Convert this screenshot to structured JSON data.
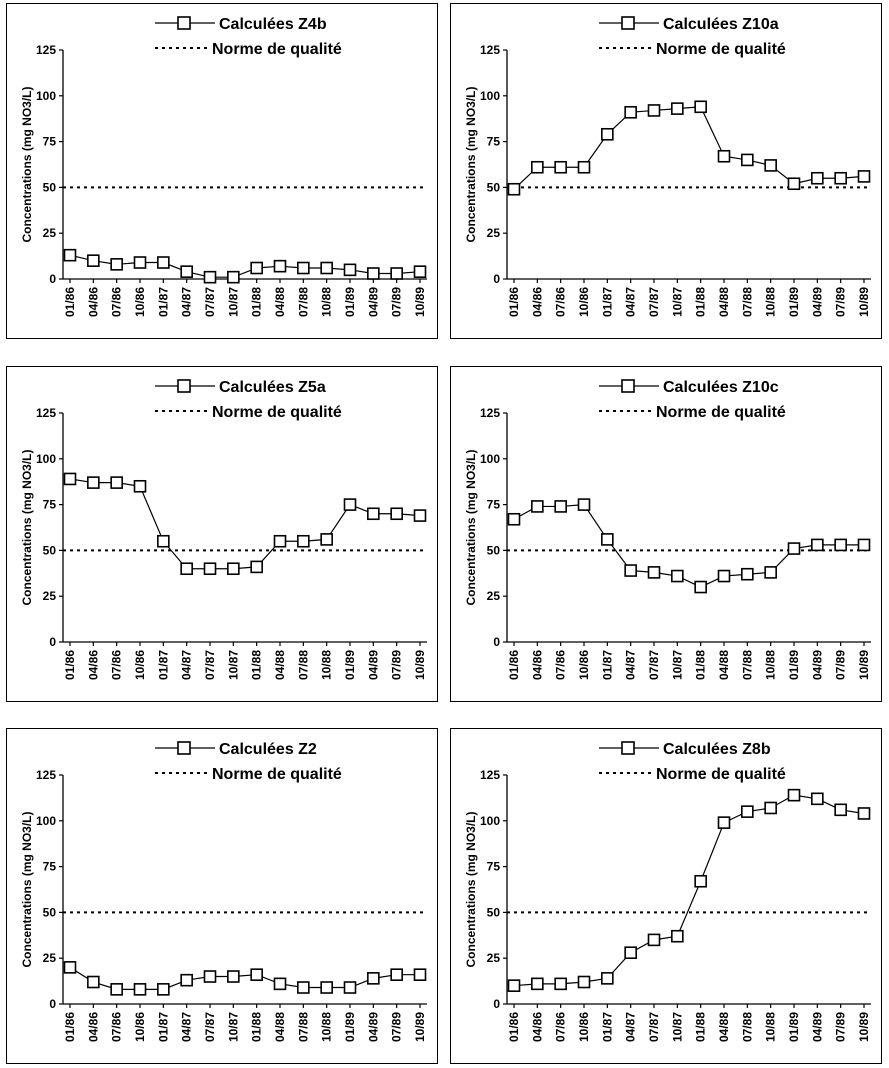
{
  "x_labels": [
    "01/86",
    "04/86",
    "07/86",
    "10/86",
    "01/87",
    "04/87",
    "07/87",
    "10/87",
    "01/88",
    "04/88",
    "07/88",
    "10/88",
    "01/89",
    "04/89",
    "07/89",
    "10/89"
  ],
  "y_ticks": [
    0,
    25,
    50,
    75,
    100,
    125
  ],
  "y_tick_labels": [
    "0",
    "25",
    "50",
    "75",
    "100",
    "125"
  ],
  "ylabel": "Concentrations (mg NO3/L)",
  "norme_label": "Norme de qualité",
  "chart_data": [
    {
      "type": "line",
      "series_name": "Calculées Z4b",
      "x": [
        "01/86",
        "04/86",
        "07/86",
        "10/86",
        "01/87",
        "04/87",
        "07/87",
        "10/87",
        "01/88",
        "04/88",
        "07/88",
        "10/88",
        "01/89",
        "04/89",
        "07/89",
        "10/89"
      ],
      "values": [
        13,
        10,
        8,
        9,
        9,
        4,
        1,
        1,
        6,
        7,
        6,
        6,
        5,
        3,
        3,
        4
      ],
      "threshold": 50,
      "ylim": [
        0,
        125
      ],
      "ylabel": "Concentrations (mg NO3/L)",
      "legend": [
        "Calculées Z4b",
        "Norme de qualité"
      ]
    },
    {
      "type": "line",
      "series_name": "Calculées Z10a",
      "x": [
        "01/86",
        "04/86",
        "07/86",
        "10/86",
        "01/87",
        "04/87",
        "07/87",
        "10/87",
        "01/88",
        "04/88",
        "07/88",
        "10/88",
        "01/89",
        "04/89",
        "07/89",
        "10/89"
      ],
      "values": [
        49,
        61,
        61,
        61,
        79,
        91,
        92,
        93,
        94,
        67,
        65,
        62,
        52,
        55,
        55,
        56
      ],
      "threshold": 50,
      "ylim": [
        0,
        125
      ],
      "ylabel": "Concentrations (mg NO3/L)",
      "legend": [
        "Calculées Z10a",
        "Norme de qualité"
      ]
    },
    {
      "type": "line",
      "series_name": "Calculées Z5a",
      "x": [
        "01/86",
        "04/86",
        "07/86",
        "10/86",
        "01/87",
        "04/87",
        "07/87",
        "10/87",
        "01/88",
        "04/88",
        "07/88",
        "10/88",
        "01/89",
        "04/89",
        "07/89",
        "10/89"
      ],
      "values": [
        89,
        87,
        87,
        85,
        55,
        40,
        40,
        40,
        41,
        55,
        55,
        56,
        75,
        70,
        70,
        69
      ],
      "threshold": 50,
      "ylim": [
        0,
        125
      ],
      "ylabel": "Concentrations (mg NO3/L)",
      "legend": [
        "Calculées Z5a",
        "Norme de qualité"
      ]
    },
    {
      "type": "line",
      "series_name": "Calculées Z10c",
      "x": [
        "01/86",
        "04/86",
        "07/86",
        "10/86",
        "01/87",
        "04/87",
        "07/87",
        "10/87",
        "01/88",
        "04/88",
        "07/88",
        "10/88",
        "01/89",
        "04/89",
        "07/89",
        "10/89"
      ],
      "values": [
        67,
        74,
        74,
        75,
        56,
        39,
        38,
        36,
        30,
        36,
        37,
        38,
        51,
        53,
        53,
        53
      ],
      "threshold": 50,
      "ylim": [
        0,
        125
      ],
      "ylabel": "Concentrations (mg NO3/L)",
      "legend": [
        "Calculées Z10c",
        "Norme de qualité"
      ]
    },
    {
      "type": "line",
      "series_name": "Calculées Z2",
      "x": [
        "01/86",
        "04/86",
        "07/86",
        "10/86",
        "01/87",
        "04/87",
        "07/87",
        "10/87",
        "01/88",
        "04/88",
        "07/88",
        "10/88",
        "01/89",
        "04/89",
        "07/89",
        "10/89"
      ],
      "values": [
        20,
        12,
        8,
        8,
        8,
        13,
        15,
        15,
        16,
        11,
        9,
        9,
        9,
        14,
        16,
        16
      ],
      "threshold": 50,
      "ylim": [
        0,
        125
      ],
      "ylabel": "Concentrations (mg NO3/L)",
      "legend": [
        "Calculées Z2",
        "Norme de qualité"
      ]
    },
    {
      "type": "line",
      "series_name": "Calculées Z8b",
      "x": [
        "01/86",
        "04/86",
        "07/86",
        "10/86",
        "01/87",
        "04/87",
        "07/87",
        "10/87",
        "01/88",
        "04/88",
        "07/88",
        "10/88",
        "01/89",
        "04/89",
        "07/89",
        "10/89"
      ],
      "values": [
        10,
        11,
        11,
        12,
        14,
        28,
        35,
        37,
        67,
        99,
        105,
        107,
        114,
        112,
        106,
        104
      ],
      "threshold": 50,
      "ylim": [
        0,
        125
      ],
      "ylabel": "Concentrations (mg NO3/L)",
      "legend": [
        "Calculées Z8b",
        "Norme de qualité"
      ]
    }
  ]
}
